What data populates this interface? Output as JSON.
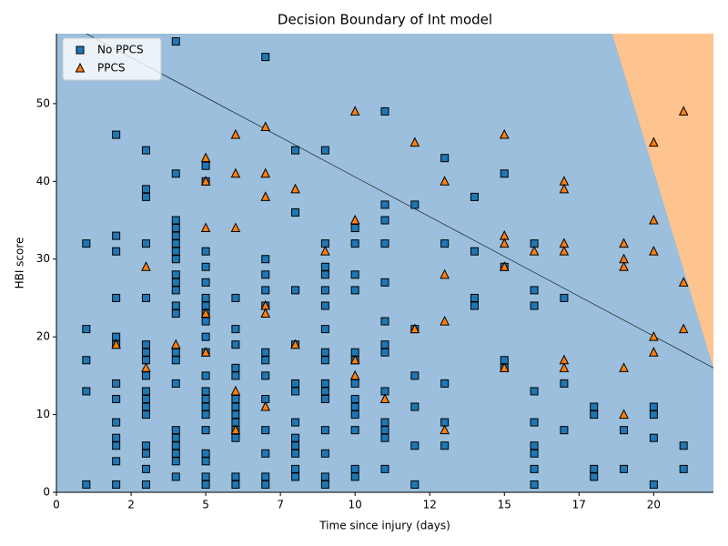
{
  "chart_data": {
    "type": "scatter",
    "title": "Decision Boundary of Int model",
    "x_label": "Time since injury (days)",
    "y_label": "HBI score",
    "xlim": [
      0,
      22
    ],
    "ylim": [
      0,
      59
    ],
    "xticks": [
      0,
      {
        "value": 2.5,
        "label": "2"
      },
      5,
      {
        "value": 7.5,
        "label": "7"
      },
      10,
      {
        "value": 12.5,
        "label": "12"
      },
      15,
      {
        "value": 17.5,
        "label": "17"
      },
      20
    ],
    "yticks": [
      0,
      10,
      20,
      30,
      40,
      50
    ],
    "legend": "upper left",
    "boundary": {
      "x": [
        1,
        22
      ],
      "y": [
        59,
        16
      ],
      "below_color": "#9bbfdc",
      "above_color": "#fdc48f"
    },
    "series": [
      {
        "name": "No PPCS",
        "color": "#1f77b4",
        "marker": "square",
        "x": [
          1,
          1,
          1,
          1,
          1,
          2,
          2,
          2,
          2,
          2,
          2,
          2,
          2,
          2,
          2,
          2,
          2,
          2,
          3,
          3,
          3,
          3,
          3,
          3,
          3,
          3,
          3,
          3,
          3,
          3,
          3,
          3,
          3,
          3,
          3,
          4,
          4,
          4,
          4,
          4,
          4,
          4,
          4,
          4,
          4,
          4,
          4,
          4,
          4,
          4,
          4,
          4,
          4,
          4,
          4,
          4,
          4,
          5,
          5,
          5,
          5,
          5,
          5,
          5,
          5,
          5,
          5,
          5,
          5,
          5,
          5,
          5,
          5,
          5,
          5,
          5,
          5,
          5,
          6,
          6,
          6,
          6,
          6,
          6,
          6,
          6,
          6,
          6,
          6,
          6,
          6,
          7,
          7,
          7,
          7,
          7,
          7,
          7,
          7,
          7,
          7,
          7,
          7,
          7,
          8,
          8,
          8,
          8,
          8,
          8,
          8,
          8,
          8,
          8,
          8,
          8,
          9,
          9,
          9,
          9,
          9,
          9,
          9,
          9,
          9,
          9,
          9,
          9,
          9,
          9,
          9,
          9,
          10,
          10,
          10,
          10,
          10,
          10,
          10,
          10,
          10,
          10,
          10,
          10,
          10,
          11,
          11,
          11,
          11,
          11,
          11,
          11,
          11,
          11,
          11,
          11,
          11,
          11,
          12,
          12,
          12,
          12,
          12,
          12,
          13,
          13,
          13,
          13,
          13,
          14,
          14,
          14,
          14,
          15,
          15,
          15,
          15,
          16,
          16,
          16,
          16,
          16,
          16,
          16,
          16,
          16,
          17,
          17,
          17,
          18,
          18,
          18,
          18,
          19,
          19,
          20,
          20,
          20,
          20,
          21,
          21
        ],
        "values": [
          32,
          21,
          17,
          13,
          1,
          46,
          33,
          31,
          25,
          20,
          19,
          14,
          12,
          9,
          7,
          6,
          4,
          1,
          44,
          39,
          38,
          32,
          25,
          19,
          18,
          17,
          15,
          13,
          12,
          11,
          10,
          6,
          5,
          3,
          1,
          58,
          41,
          35,
          34,
          33,
          32,
          31,
          30,
          28,
          27,
          26,
          24,
          23,
          18,
          17,
          14,
          8,
          7,
          6,
          5,
          4,
          2,
          42,
          40,
          31,
          29,
          27,
          25,
          24,
          23,
          22,
          20,
          18,
          15,
          13,
          12,
          11,
          10,
          8,
          5,
          4,
          2,
          1,
          25,
          21,
          19,
          16,
          15,
          12,
          11,
          10,
          9,
          8,
          7,
          2,
          1,
          56,
          30,
          28,
          26,
          24,
          18,
          17,
          15,
          12,
          8,
          5,
          2,
          1,
          44,
          36,
          26,
          19,
          14,
          13,
          9,
          7,
          6,
          5,
          3,
          2,
          44,
          32,
          29,
          28,
          26,
          24,
          21,
          18,
          17,
          14,
          13,
          12,
          8,
          5,
          2,
          1,
          34,
          32,
          28,
          26,
          18,
          17,
          14,
          12,
          11,
          10,
          8,
          3,
          2,
          49,
          37,
          35,
          32,
          27,
          22,
          19,
          18,
          13,
          9,
          8,
          7,
          3,
          37,
          21,
          15,
          11,
          6,
          1,
          43,
          32,
          14,
          9,
          6,
          38,
          31,
          25,
          24,
          41,
          29,
          17,
          16,
          32,
          26,
          24,
          13,
          9,
          6,
          5,
          3,
          1,
          25,
          14,
          8,
          11,
          10,
          3,
          2,
          8,
          3,
          11,
          10,
          7,
          1,
          6,
          3
        ]
      },
      {
        "name": "PPCS",
        "color": "#ff7f0e",
        "marker": "triangle",
        "x": [
          2,
          3,
          3,
          4,
          5,
          5,
          5,
          5,
          5,
          6,
          6,
          6,
          6,
          6,
          7,
          7,
          7,
          7,
          7,
          7,
          8,
          8,
          9,
          10,
          10,
          10,
          10,
          11,
          12,
          12,
          13,
          13,
          13,
          13,
          15,
          15,
          15,
          15,
          15,
          16,
          17,
          17,
          17,
          17,
          17,
          17,
          19,
          19,
          19,
          19,
          19,
          20,
          20,
          20,
          20,
          20,
          21,
          21,
          21
        ],
        "values": [
          19,
          29,
          16,
          19,
          43,
          40,
          34,
          23,
          18,
          46,
          41,
          34,
          13,
          8,
          47,
          41,
          38,
          24,
          23,
          11,
          39,
          19,
          31,
          49,
          35,
          17,
          15,
          12,
          45,
          21,
          40,
          28,
          22,
          8,
          46,
          33,
          32,
          29,
          16,
          31,
          40,
          39,
          32,
          31,
          17,
          16,
          32,
          30,
          29,
          16,
          10,
          45,
          35,
          31,
          20,
          18,
          49,
          27,
          21
        ]
      }
    ]
  }
}
